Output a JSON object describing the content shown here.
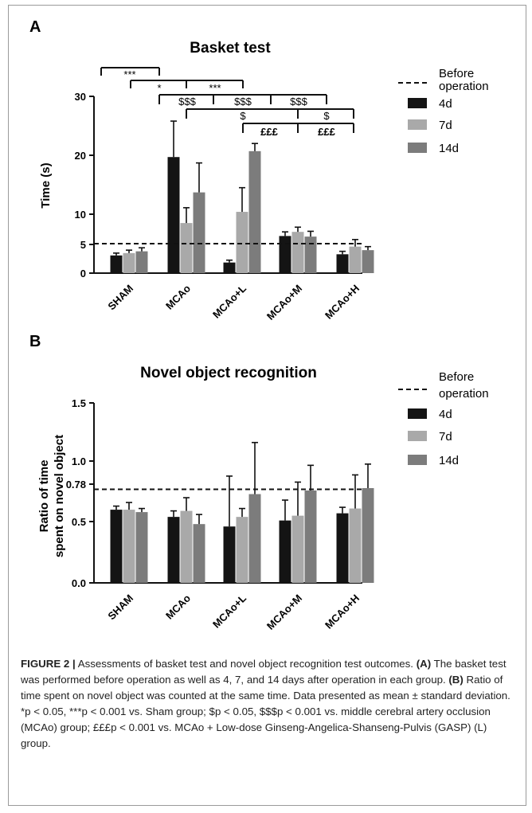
{
  "colors": {
    "4d": "#141414",
    "7d": "#a9a9a9",
    "14d": "#7c7c7c"
  },
  "chart_data": [
    {
      "panel": "A",
      "type": "bar",
      "title": "Basket test",
      "ylabel": "Time (s)",
      "ylim": [
        0,
        30
      ],
      "yticks": [
        "0",
        "5",
        "10",
        "20",
        "30"
      ],
      "categories": [
        "SHAM",
        "MCAo",
        "MCAo+L",
        "MCAo+M",
        "MCAo+H"
      ],
      "series": [
        {
          "name": "4d",
          "values": [
            3.0,
            19.7,
            1.8,
            6.3,
            3.2
          ],
          "errors": [
            0.4,
            6.1,
            0.4,
            0.7,
            0.5
          ]
        },
        {
          "name": "7d",
          "values": [
            3.4,
            8.5,
            10.4,
            7.0,
            4.5
          ],
          "errors": [
            0.5,
            2.6,
            4.1,
            0.8,
            1.2
          ]
        },
        {
          "name": "14d",
          "values": [
            3.7,
            13.7,
            20.7,
            6.2,
            3.9
          ],
          "errors": [
            0.6,
            5.0,
            1.3,
            0.9,
            0.6
          ]
        }
      ],
      "reference_line": {
        "label": "Before operation",
        "value": 5
      },
      "legend": [
        "Before operation",
        "4d",
        "7d",
        "14d"
      ],
      "significance": [
        {
          "label": "***"
        },
        {
          "label": "*"
        },
        {
          "label": "***"
        },
        {
          "label": "$$$"
        },
        {
          "label": "$$$"
        },
        {
          "label": "$$$"
        },
        {
          "label": "$"
        },
        {
          "label": "$"
        },
        {
          "label": "£££"
        },
        {
          "label": "£££"
        }
      ]
    },
    {
      "panel": "B",
      "type": "bar",
      "title": "Novel object recognition",
      "ylabel": "Ratio of time\nspent on novel object",
      "ylim": [
        0,
        1.5
      ],
      "yticks": [
        "0.0",
        "0.5",
        "0.78",
        "1.0",
        "1.5"
      ],
      "categories": [
        "SHAM",
        "MCAo",
        "MCAo+L",
        "MCAo+M",
        "MCAo+H"
      ],
      "series": [
        {
          "name": "4d",
          "values": [
            0.61,
            0.55,
            0.47,
            0.52,
            0.58
          ],
          "errors": [
            0.03,
            0.05,
            0.42,
            0.17,
            0.05
          ]
        },
        {
          "name": "7d",
          "values": [
            0.61,
            0.6,
            0.55,
            0.56,
            0.62
          ],
          "errors": [
            0.06,
            0.11,
            0.07,
            0.28,
            0.28
          ]
        },
        {
          "name": "14d",
          "values": [
            0.59,
            0.49,
            0.74,
            0.77,
            0.79
          ],
          "errors": [
            0.03,
            0.08,
            0.43,
            0.21,
            0.2
          ]
        }
      ],
      "reference_line": {
        "label": "Before operation",
        "value": 0.78
      },
      "legend": [
        "Before operation",
        "4d",
        "7d",
        "14d"
      ]
    }
  ],
  "caption": {
    "label": "FIGURE 2 |",
    "text1": " Assessments of basket test and novel object recognition test outcomes. ",
    "a": "(A)",
    "text2": " The basket test was performed before operation as well as 4, 7, and 14 days after operation in each group. ",
    "b": "(B)",
    "text3": " Ratio of time spent on novel object was counted at the same time. Data presented as mean ± standard deviation. *p < 0.05, ***p < 0.001 vs. Sham group; $p < 0.05, $$$p < 0.001 vs. middle cerebral artery occlusion (MCAo) group; £££p < 0.001 vs. MCAo + Low-dose Ginseng-Angelica-Shanseng-Pulvis (GASP) (L) group."
  }
}
